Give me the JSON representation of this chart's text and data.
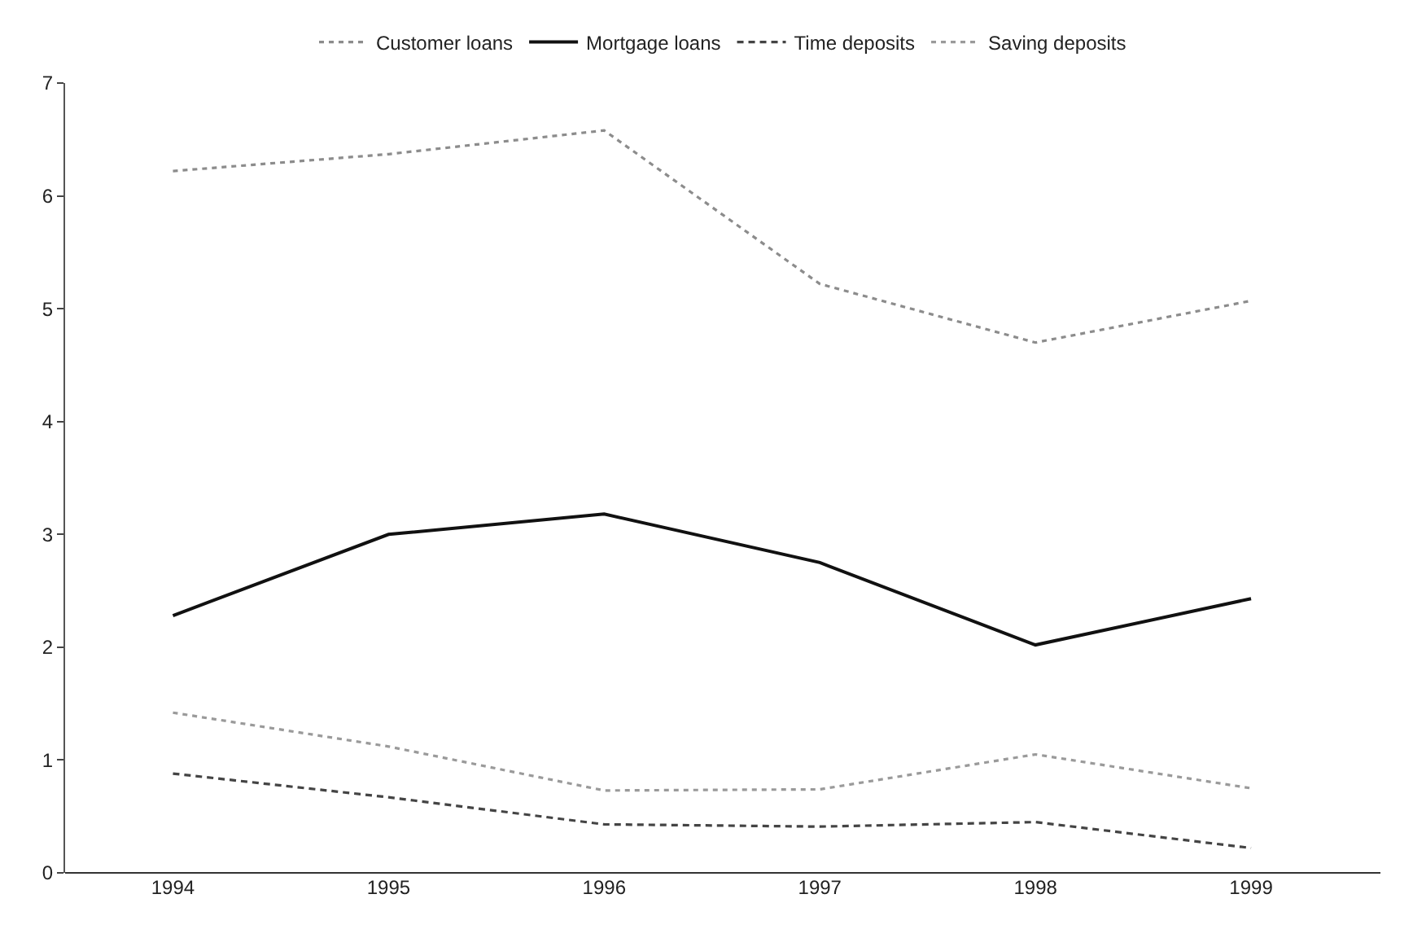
{
  "chart_data": {
    "type": "line",
    "categories": [
      "1994",
      "1995",
      "1996",
      "1997",
      "1998",
      "1999"
    ],
    "series": [
      {
        "name": "Customer loans",
        "color": "#8c8c8c",
        "line_style": "dotted",
        "values": [
          6.22,
          6.37,
          6.58,
          5.22,
          4.7,
          5.07
        ]
      },
      {
        "name": "Mortgage loans",
        "color": "#111111",
        "line_style": "solid",
        "values": [
          2.28,
          3.0,
          3.18,
          2.75,
          2.02,
          2.43
        ]
      },
      {
        "name": "Time deposits",
        "color": "#444444",
        "line_style": "dashed",
        "values": [
          0.88,
          0.67,
          0.43,
          0.41,
          0.45,
          0.22
        ]
      },
      {
        "name": "Saving deposits",
        "color": "#9a9a9a",
        "line_style": "dotted",
        "values": [
          1.42,
          1.12,
          0.73,
          0.74,
          1.05,
          0.75
        ]
      }
    ],
    "ylim": [
      0,
      7
    ],
    "yticks": [
      0,
      1,
      2,
      3,
      4,
      5,
      6,
      7
    ],
    "legend": "top",
    "marker": "none"
  }
}
